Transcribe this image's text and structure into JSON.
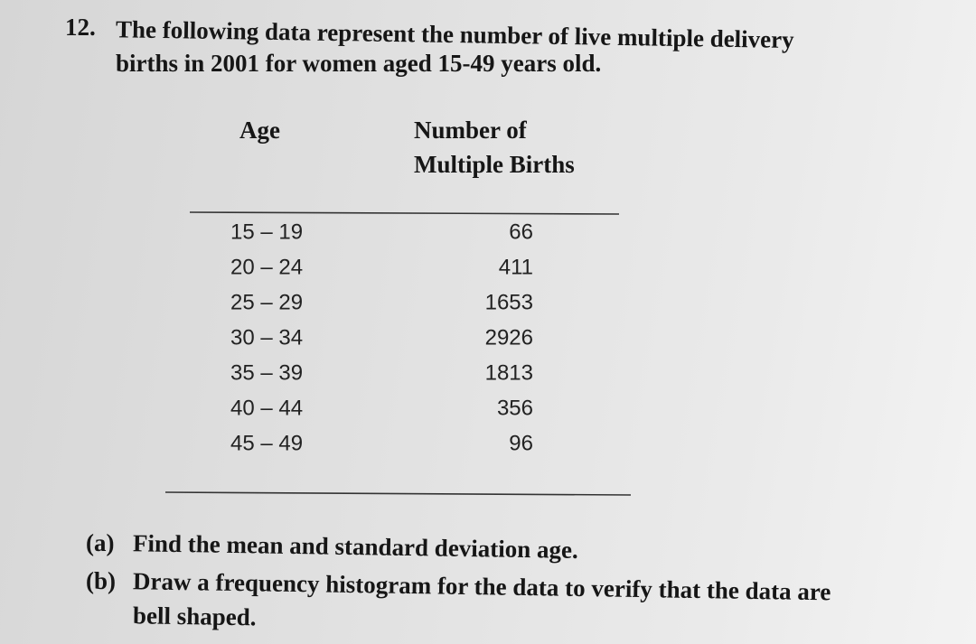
{
  "problem": {
    "number": "12.",
    "lines": [
      "The following data represent the number of live multiple delivery",
      "births in 2001 for women aged 15-49 years old."
    ]
  },
  "table": {
    "headers": [
      [
        "Age"
      ],
      [
        "Number of",
        "Multiple Births"
      ]
    ],
    "rows": [
      [
        "15 – 19",
        66
      ],
      [
        "20 – 24",
        411
      ],
      [
        "25 – 29",
        1653
      ],
      [
        "30 – 34",
        2926
      ],
      [
        "35 – 39",
        1813
      ],
      [
        "40 – 44",
        356
      ],
      [
        "45 – 49",
        96
      ]
    ]
  },
  "parts": [
    {
      "label": "(a)",
      "lines": [
        "Find the mean and standard deviation age."
      ]
    },
    {
      "label": "(b)",
      "lines": [
        "Draw a frequency histogram for the data to verify that the data are",
        "bell shaped."
      ]
    }
  ]
}
